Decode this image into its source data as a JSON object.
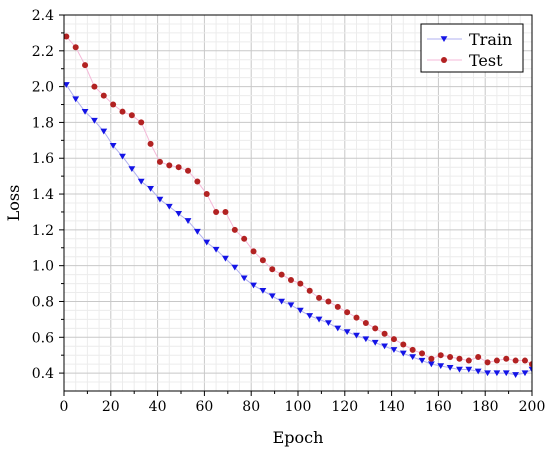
{
  "chart_data": {
    "type": "scatter",
    "title": "",
    "xlabel": "Epoch",
    "ylabel": "Loss",
    "xlim": [
      0,
      200
    ],
    "ylim": [
      0.3,
      2.4
    ],
    "x_ticks": [
      0,
      20,
      40,
      60,
      80,
      100,
      120,
      140,
      160,
      180,
      200
    ],
    "x_tick_labels": [
      "0",
      "20",
      "40",
      "60",
      "80",
      "100",
      "120",
      "140",
      "160",
      "180",
      "200"
    ],
    "y_ticks": [
      0.4,
      0.6,
      0.8,
      1.0,
      1.2,
      1.4,
      1.6,
      1.8,
      2.0,
      2.2,
      2.4
    ],
    "y_tick_labels": [
      "0.4",
      "0.6",
      "0.8",
      "1.0",
      "1.2",
      "1.4",
      "1.6",
      "1.8",
      "2.0",
      "2.2",
      "2.4"
    ],
    "grid": true,
    "legend_position": "top-right",
    "series": [
      {
        "name": "Train",
        "marker": "triangle-down",
        "color": "#1414e6",
        "x": [
          1,
          5,
          9,
          13,
          17,
          21,
          25,
          29,
          33,
          37,
          41,
          45,
          49,
          53,
          57,
          61,
          65,
          69,
          73,
          77,
          81,
          85,
          89,
          93,
          97,
          101,
          105,
          109,
          113,
          117,
          121,
          125,
          129,
          133,
          137,
          141,
          145,
          149,
          153,
          157,
          161,
          165,
          169,
          173,
          177,
          181,
          185,
          189,
          193,
          197,
          200
        ],
        "values": [
          2.01,
          1.93,
          1.86,
          1.81,
          1.75,
          1.67,
          1.61,
          1.54,
          1.47,
          1.43,
          1.37,
          1.33,
          1.29,
          1.25,
          1.19,
          1.13,
          1.09,
          1.04,
          0.99,
          0.93,
          0.89,
          0.86,
          0.83,
          0.8,
          0.78,
          0.75,
          0.72,
          0.7,
          0.68,
          0.65,
          0.63,
          0.61,
          0.59,
          0.57,
          0.55,
          0.53,
          0.51,
          0.49,
          0.47,
          0.45,
          0.44,
          0.43,
          0.42,
          0.42,
          0.41,
          0.4,
          0.4,
          0.4,
          0.39,
          0.4,
          0.42
        ]
      },
      {
        "name": "Test",
        "marker": "circle",
        "color": "#b22222",
        "x": [
          1,
          5,
          9,
          13,
          17,
          21,
          25,
          29,
          33,
          37,
          41,
          45,
          49,
          53,
          57,
          61,
          65,
          69,
          73,
          77,
          81,
          85,
          89,
          93,
          97,
          101,
          105,
          109,
          113,
          117,
          121,
          125,
          129,
          133,
          137,
          141,
          145,
          149,
          153,
          157,
          161,
          165,
          169,
          173,
          177,
          181,
          185,
          189,
          193,
          197,
          200
        ],
        "values": [
          2.28,
          2.22,
          2.12,
          2.0,
          1.95,
          1.9,
          1.86,
          1.84,
          1.8,
          1.68,
          1.58,
          1.56,
          1.55,
          1.53,
          1.47,
          1.4,
          1.3,
          1.3,
          1.2,
          1.15,
          1.08,
          1.03,
          0.98,
          0.95,
          0.92,
          0.9,
          0.86,
          0.82,
          0.8,
          0.77,
          0.74,
          0.71,
          0.68,
          0.65,
          0.62,
          0.59,
          0.56,
          0.53,
          0.51,
          0.48,
          0.5,
          0.49,
          0.48,
          0.47,
          0.49,
          0.46,
          0.47,
          0.48,
          0.47,
          0.47,
          0.45
        ]
      }
    ]
  }
}
